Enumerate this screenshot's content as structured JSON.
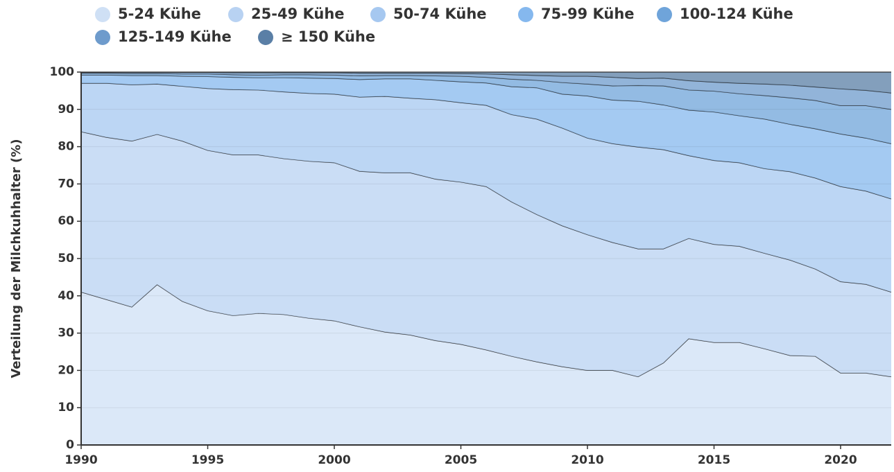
{
  "chart_data": {
    "type": "stacked_area",
    "ylabel": "Verteilung der Milchkuhhalter (%)",
    "x": [
      1990,
      1991,
      1992,
      1993,
      1994,
      1995,
      1996,
      1997,
      1998,
      1999,
      2000,
      2001,
      2002,
      2003,
      2004,
      2005,
      2006,
      2007,
      2008,
      2009,
      2010,
      2011,
      2012,
      2013,
      2014,
      2015,
      2016,
      2017,
      2018,
      2019,
      2020,
      2021,
      2022
    ],
    "series": [
      {
        "name": "5-24 Kühe",
        "color": "#cfe0f5",
        "values": [
          41,
          39,
          37,
          43,
          38.5,
          36,
          34.7,
          35.3,
          35,
          34,
          33.3,
          31.7,
          30.3,
          29.5,
          28,
          27,
          25.5,
          23.8,
          22.3,
          21,
          20,
          20,
          18.3,
          22,
          28.5,
          27.5,
          27.5,
          25.8,
          24,
          23.8,
          19.3,
          19.3,
          18.3
        ]
      },
      {
        "name": "25-49 Kühe",
        "color": "#b8d2f2",
        "values": [
          43,
          43.5,
          44.5,
          40.3,
          43,
          43,
          43.1,
          42.5,
          41.8,
          42.1,
          42.4,
          41.7,
          42.7,
          43.5,
          43.3,
          43.5,
          43.8,
          41.4,
          39.5,
          37.8,
          36.4,
          34.3,
          34.3,
          30.6,
          26.9,
          26.3,
          25.8,
          25.6,
          25.6,
          23.4,
          24.5,
          23.8,
          22.7
        ]
      },
      {
        "name": "50-74 Kühe",
        "color": "#a6c8f0",
        "values": [
          13,
          14.5,
          15.1,
          13.5,
          14.7,
          16.6,
          17.5,
          17.4,
          17.9,
          18.2,
          18.4,
          19.9,
          20.5,
          20,
          21.3,
          21.3,
          21.8,
          23.4,
          25.6,
          26.2,
          25.9,
          26.5,
          27.3,
          26.6,
          22.2,
          22.5,
          22.4,
          22.7,
          23.7,
          24.4,
          25.5,
          25,
          25
        ]
      },
      {
        "name": "75-99 Kühe",
        "color": "#85b8ee",
        "values": [
          2.2,
          2.2,
          2.5,
          2.3,
          2.7,
          3.2,
          3.3,
          3.3,
          3.8,
          4.1,
          4.2,
          4.7,
          4.7,
          5.2,
          5.2,
          5.6,
          6,
          7.5,
          8.4,
          9.1,
          11.3,
          11.7,
          12.3,
          12,
          12.2,
          13,
          12.6,
          13.3,
          12.7,
          13.2,
          14.1,
          14.2,
          14.8
        ]
      },
      {
        "name": "100-124 Kühe",
        "color": "#6fa4da",
        "values": [
          0.5,
          0.5,
          0.5,
          0.5,
          0.6,
          0.7,
          0.7,
          0.7,
          0.8,
          0.9,
          0.9,
          1,
          0.9,
          0.9,
          1.2,
          1.5,
          1.5,
          2,
          2,
          3.1,
          3.2,
          3.8,
          4.2,
          5.1,
          5.4,
          5.6,
          5.9,
          6.3,
          7.1,
          7.6,
          7.6,
          8.7,
          9.2
        ]
      },
      {
        "name": "125-149 Kühe",
        "color": "#6e9bcc",
        "values": [
          0.2,
          0.2,
          0.3,
          0.3,
          0.4,
          0.4,
          0.5,
          0.6,
          0.5,
          0.5,
          0.6,
          0.7,
          0.6,
          0.6,
          0.7,
          0.7,
          0.9,
          1.2,
          1.3,
          1.7,
          2.1,
          2.3,
          1.9,
          2.1,
          2.5,
          2.4,
          2.8,
          3.1,
          3.4,
          3.6,
          4.5,
          4.1,
          4.4
        ]
      },
      {
        "name": "≥ 150 Kühe",
        "color": "#5a7fa6",
        "values": [
          0.1,
          0.1,
          0.1,
          0.1,
          0.1,
          0.1,
          0.2,
          0.2,
          0.2,
          0.2,
          0.2,
          0.3,
          0.3,
          0.3,
          0.3,
          0.4,
          0.5,
          0.7,
          0.9,
          1.1,
          1.1,
          1.4,
          1.7,
          1.6,
          2.3,
          2.7,
          3,
          3.2,
          3.5,
          4,
          4.5,
          4.9,
          5.6
        ]
      }
    ],
    "xlim": [
      1990,
      2022
    ],
    "xticks": [
      1990,
      1995,
      2000,
      2005,
      2010,
      2015,
      2020
    ],
    "ylim": [
      0,
      100
    ],
    "yticks": [
      0,
      10,
      20,
      30,
      40,
      50,
      60,
      70,
      80,
      90,
      100
    ],
    "grid": true
  }
}
